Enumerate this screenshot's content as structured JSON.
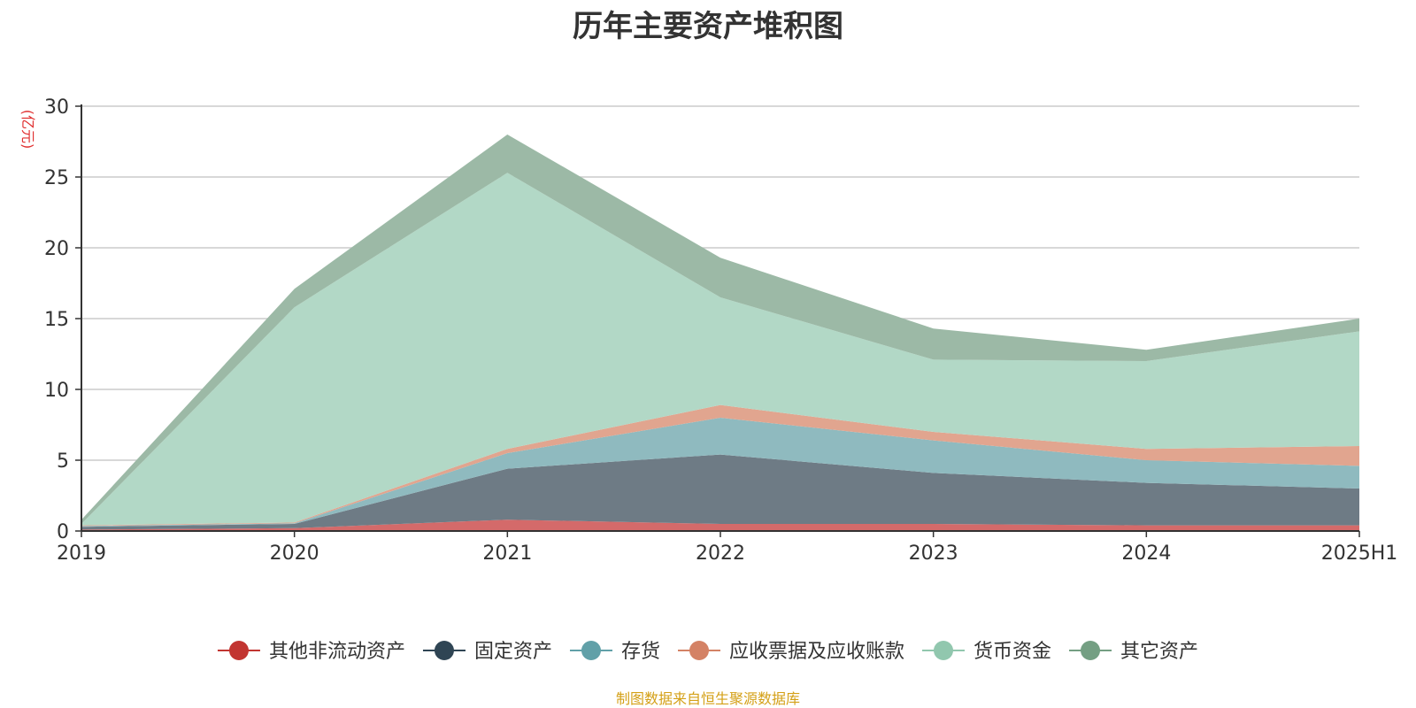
{
  "title": "历年主要资产堆积图",
  "footer": "制图数据来自恒生聚源数据库",
  "colors": {
    "title": "#333333",
    "footer": "#d4a017",
    "unit": "#e03030",
    "grid": "#cccccc",
    "axis": "#333333"
  },
  "chart_data": {
    "type": "area",
    "stacked": true,
    "unit_label": "(亿元)",
    "categories": [
      "2019",
      "2020",
      "2021",
      "2022",
      "2023",
      "2024",
      "2025H1"
    ],
    "ylim": [
      0,
      30
    ],
    "yticks": [
      0,
      5,
      10,
      15,
      20,
      25,
      30
    ],
    "grid": true,
    "legend_position": "bottom",
    "series": [
      {
        "name": "其他非流动资产",
        "color": "#c23531",
        "area_color": "#d46a6a",
        "values": [
          0.1,
          0.2,
          0.8,
          0.5,
          0.5,
          0.4,
          0.4
        ]
      },
      {
        "name": "固定资产",
        "color": "#2f4554",
        "area_color": "#6e7b85",
        "values": [
          0.2,
          0.3,
          3.6,
          4.9,
          3.6,
          3.0,
          2.6
        ]
      },
      {
        "name": "存货",
        "color": "#61a0a8",
        "area_color": "#8fbabf",
        "values": [
          0.05,
          0.05,
          1.1,
          2.6,
          2.3,
          1.6,
          1.6
        ]
      },
      {
        "name": "应收票据及应收账款",
        "color": "#d48265",
        "area_color": "#e1a58f",
        "values": [
          0.05,
          0.05,
          0.3,
          0.9,
          0.6,
          0.8,
          1.4
        ]
      },
      {
        "name": "货币资金",
        "color": "#91c7ae",
        "area_color": "#b2d8c6",
        "values": [
          0.1,
          15.2,
          19.5,
          7.6,
          5.1,
          6.2,
          8.1
        ]
      },
      {
        "name": "其它资产",
        "color": "#749f83",
        "area_color": "#9cb9a6",
        "values": [
          0.3,
          1.3,
          2.7,
          2.8,
          2.2,
          0.8,
          0.9
        ]
      }
    ]
  }
}
